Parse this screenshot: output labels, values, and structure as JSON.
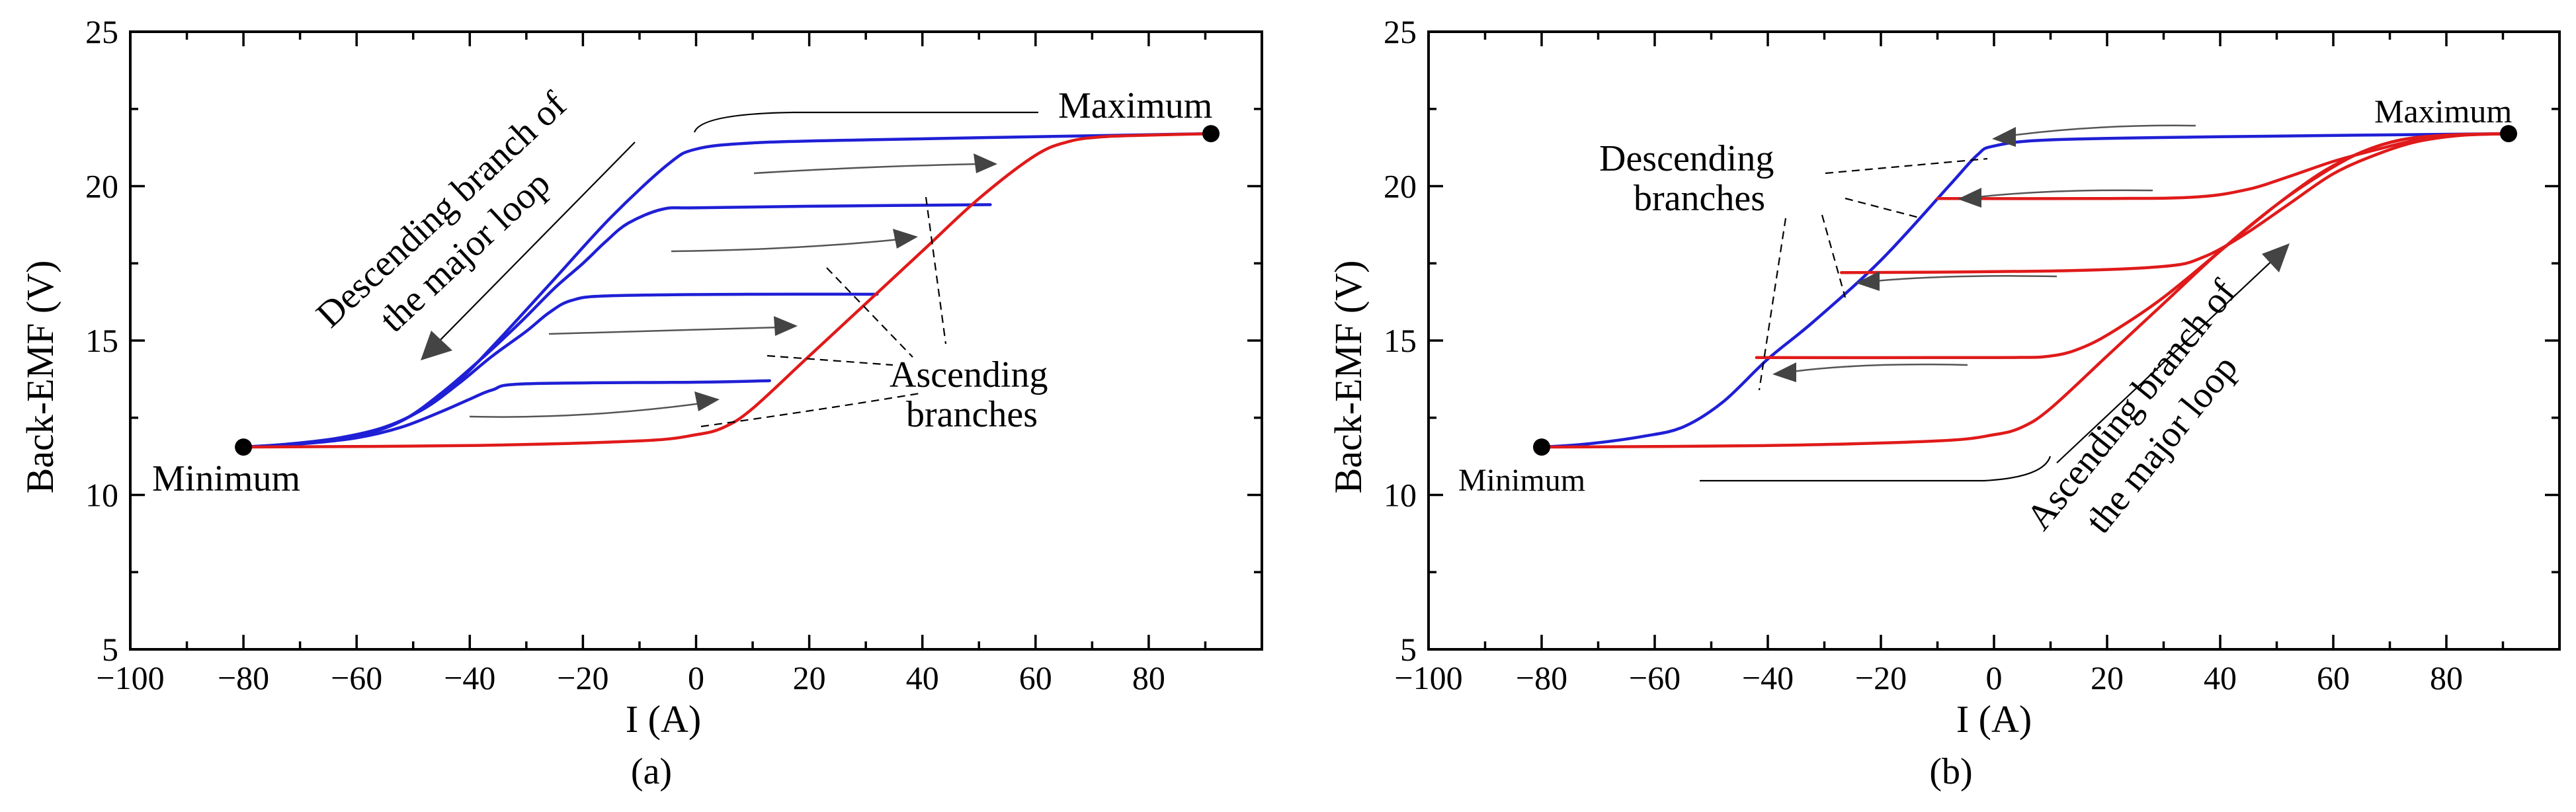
{
  "chart_data": [
    {
      "type": "line",
      "panel": "(a)",
      "xlabel": "I (A)",
      "ylabel": "Back-EMF (V)",
      "xlim": [
        -100,
        100
      ],
      "ylim": [
        5,
        25
      ],
      "xticks": [
        -100,
        -80,
        -60,
        -40,
        -20,
        0,
        20,
        40,
        60,
        80
      ],
      "yticks": [
        5,
        10,
        15,
        20,
        25
      ],
      "series": [
        {
          "name": "Descending branch of the major loop",
          "color": "#1f1fd6",
          "points": [
            [
              91,
              21.7
            ],
            [
              60,
              21.6
            ],
            [
              30,
              21.5
            ],
            [
              10,
              21.4
            ],
            [
              0,
              21.2
            ],
            [
              -5,
              20.7
            ],
            [
              -15,
              19.0
            ],
            [
              -25,
              17.0
            ],
            [
              -35,
              15.0
            ],
            [
              -42,
              13.7
            ],
            [
              -50,
              12.6
            ],
            [
              -58,
              12.0
            ],
            [
              -68,
              11.7
            ],
            [
              -80,
              11.55
            ]
          ]
        },
        {
          "name": "Descending minor branch 1",
          "color": "#1f1fd6",
          "points": [
            [
              52,
              19.4
            ],
            [
              20,
              19.35
            ],
            [
              0,
              19.3
            ],
            [
              -6,
              19.25
            ],
            [
              -12,
              18.8
            ],
            [
              -16,
              18.2
            ],
            [
              -20,
              17.5
            ],
            [
              -25,
              16.7
            ],
            [
              -31,
              15.6
            ],
            [
              -38,
              14.4
            ],
            [
              -45,
              13.3
            ],
            [
              -52,
              12.4
            ],
            [
              -60,
              11.9
            ],
            [
              -70,
              11.65
            ],
            [
              -80,
              11.55
            ]
          ]
        },
        {
          "name": "Descending minor branch 2",
          "color": "#1f1fd6",
          "points": [
            [
              32,
              16.5
            ],
            [
              10,
              16.5
            ],
            [
              -15,
              16.45
            ],
            [
              -22,
              16.3
            ],
            [
              -26,
              15.9
            ],
            [
              -30,
              15.3
            ],
            [
              -36,
              14.5
            ],
            [
              -42,
              13.6
            ],
            [
              -48,
              12.8
            ],
            [
              -55,
              12.2
            ],
            [
              -63,
              11.85
            ],
            [
              -72,
              11.65
            ],
            [
              -80,
              11.55
            ]
          ]
        },
        {
          "name": "Descending minor branch 3",
          "color": "#1f1fd6",
          "points": [
            [
              13,
              13.7
            ],
            [
              0,
              13.65
            ],
            [
              -30,
              13.6
            ],
            [
              -36,
              13.4
            ],
            [
              -40,
              13.1
            ],
            [
              -45,
              12.7
            ],
            [
              -52,
              12.2
            ],
            [
              -60,
              11.85
            ],
            [
              -70,
              11.65
            ],
            [
              -80,
              11.55
            ]
          ]
        },
        {
          "name": "Ascending branch of the major loop",
          "color": "#e01a1a",
          "points": [
            [
              -80,
              11.55
            ],
            [
              -40,
              11.6
            ],
            [
              -10,
              11.75
            ],
            [
              0,
              11.95
            ],
            [
              5,
              12.2
            ],
            [
              10,
              12.8
            ],
            [
              20,
              14.5
            ],
            [
              30,
              16.2
            ],
            [
              40,
              17.9
            ],
            [
              50,
              19.6
            ],
            [
              60,
              21.0
            ],
            [
              66,
              21.45
            ],
            [
              72,
              21.6
            ],
            [
              80,
              21.65
            ],
            [
              91,
              21.7
            ]
          ]
        }
      ],
      "markers": [
        {
          "label": "Minimum",
          "x": -80,
          "y": 11.55
        },
        {
          "label": "Maximum",
          "x": 91,
          "y": 21.7
        }
      ],
      "annotations": {
        "descending_line1": "Descending branch of",
        "descending_line2": "the major loop",
        "ascending_line1": "Ascending",
        "ascending_line2": "branches"
      }
    },
    {
      "type": "line",
      "panel": "(b)",
      "xlabel": "I (A)",
      "ylabel": "Back-EMF (V)",
      "xlim": [
        -100,
        100
      ],
      "ylim": [
        5,
        25
      ],
      "xticks": [
        -100,
        -80,
        -60,
        -40,
        -20,
        0,
        20,
        40,
        60,
        80
      ],
      "yticks": [
        5,
        10,
        15,
        20,
        25
      ],
      "series": [
        {
          "name": "Descending branch of the major loop",
          "color": "#1f1fd6",
          "points": [
            [
              91,
              21.7
            ],
            [
              40,
              21.6
            ],
            [
              10,
              21.5
            ],
            [
              0,
              21.3
            ],
            [
              -3,
              21.0
            ],
            [
              -8,
              20.0
            ],
            [
              -20,
              17.6
            ],
            [
              -32,
              15.6
            ],
            [
              -40,
              14.4
            ],
            [
              -48,
              13.0
            ],
            [
              -55,
              12.2
            ],
            [
              -62,
              11.9
            ],
            [
              -72,
              11.65
            ],
            [
              -80,
              11.55
            ]
          ]
        },
        {
          "name": "Ascending branch of the major loop",
          "color": "#e01a1a",
          "points": [
            [
              -80,
              11.55
            ],
            [
              -40,
              11.6
            ],
            [
              -10,
              11.75
            ],
            [
              0,
              11.95
            ],
            [
              5,
              12.2
            ],
            [
              10,
              12.8
            ],
            [
              20,
              14.5
            ],
            [
              30,
              16.2
            ],
            [
              40,
              17.9
            ],
            [
              50,
              19.4
            ],
            [
              58,
              20.4
            ],
            [
              65,
              21.1
            ],
            [
              72,
              21.5
            ],
            [
              80,
              21.65
            ],
            [
              91,
              21.7
            ]
          ]
        },
        {
          "name": "Ascending minor branch 1",
          "color": "#e01a1a",
          "points": [
            [
              -10,
              19.6
            ],
            [
              20,
              19.6
            ],
            [
              36,
              19.65
            ],
            [
              45,
              19.9
            ],
            [
              52,
              20.3
            ],
            [
              60,
              20.8
            ],
            [
              68,
              21.2
            ],
            [
              75,
              21.5
            ],
            [
              83,
              21.65
            ],
            [
              91,
              21.7
            ]
          ]
        },
        {
          "name": "Ascending minor branch 2",
          "color": "#e01a1a",
          "points": [
            [
              -27,
              17.2
            ],
            [
              10,
              17.25
            ],
            [
              30,
              17.4
            ],
            [
              37,
              17.7
            ],
            [
              44,
              18.4
            ],
            [
              52,
              19.4
            ],
            [
              60,
              20.4
            ],
            [
              68,
              21.05
            ],
            [
              75,
              21.45
            ],
            [
              83,
              21.65
            ],
            [
              91,
              21.7
            ]
          ]
        },
        {
          "name": "Ascending minor branch 3",
          "color": "#e01a1a",
          "points": [
            [
              -42,
              14.45
            ],
            [
              0,
              14.45
            ],
            [
              10,
              14.5
            ],
            [
              16,
              14.8
            ],
            [
              22,
              15.4
            ],
            [
              30,
              16.4
            ],
            [
              40,
              17.9
            ],
            [
              50,
              19.4
            ],
            [
              58,
              20.45
            ],
            [
              65,
              21.1
            ],
            [
              72,
              21.5
            ],
            [
              80,
              21.65
            ],
            [
              91,
              21.7
            ]
          ]
        }
      ],
      "markers": [
        {
          "label": "Minimum",
          "x": -80,
          "y": 11.55
        },
        {
          "label": "Maximum",
          "x": 91,
          "y": 21.7
        }
      ],
      "annotations": {
        "descending_line1": "Descending",
        "descending_line2": "branches",
        "ascending_line1": "Ascending branch of",
        "ascending_line2": "the major loop"
      }
    }
  ]
}
